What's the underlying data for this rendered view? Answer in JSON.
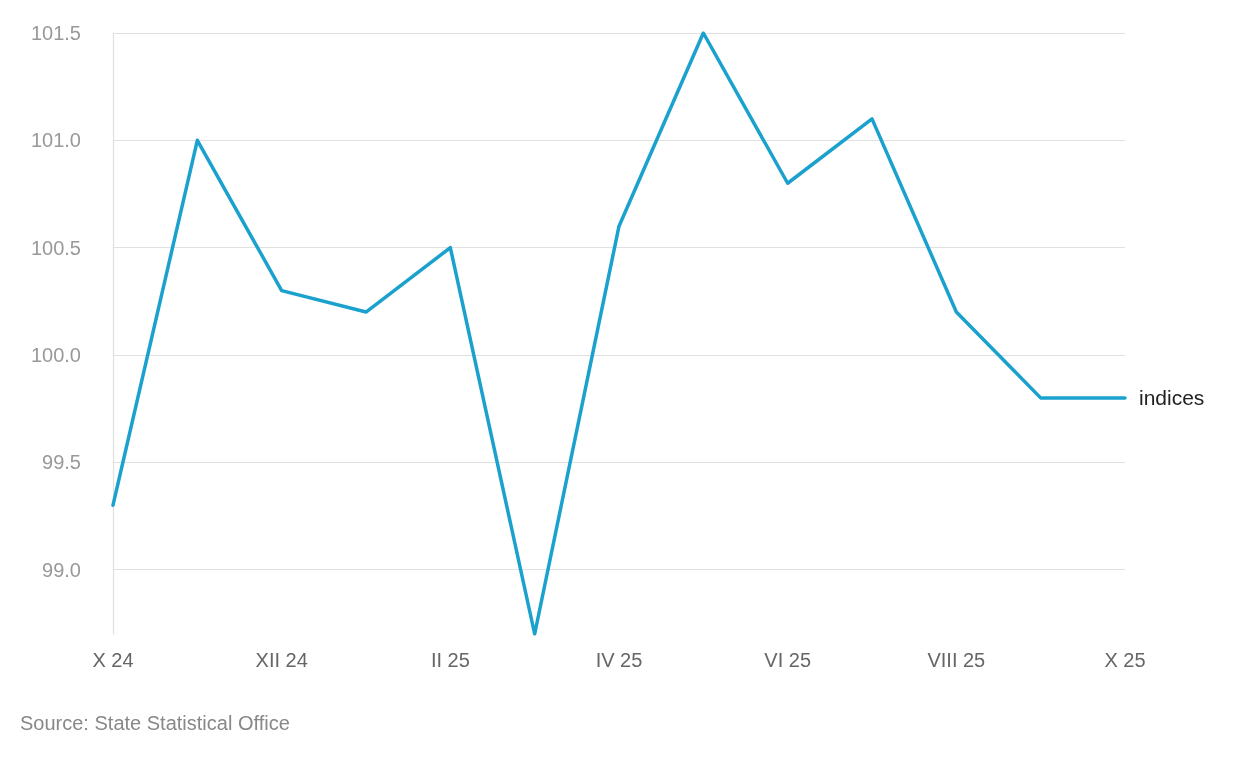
{
  "chart_data": {
    "type": "line",
    "categories": [
      "X 24",
      null,
      "XII 24",
      null,
      "II 25",
      null,
      "IV 25",
      null,
      "VI 25",
      null,
      "VIII 25",
      null,
      "X 25"
    ],
    "series": [
      {
        "name": "indices",
        "color": "#1ba1cd",
        "values": [
          99.3,
          101.0,
          100.3,
          100.2,
          100.5,
          98.7,
          100.6,
          101.5,
          100.8,
          101.1,
          100.2,
          99.8,
          99.8
        ]
      }
    ],
    "ylim": [
      98.7,
      101.5
    ],
    "yticks": [
      {
        "value": 99,
        "label": "99.0"
      },
      99.5,
      {
        "value": 100,
        "label": "100.0"
      },
      100.5,
      {
        "value": 101,
        "label": "101.0"
      },
      101.5
    ],
    "grid": "y",
    "marker": "none",
    "annotations": [
      "Source: State Statistical Office"
    ]
  }
}
